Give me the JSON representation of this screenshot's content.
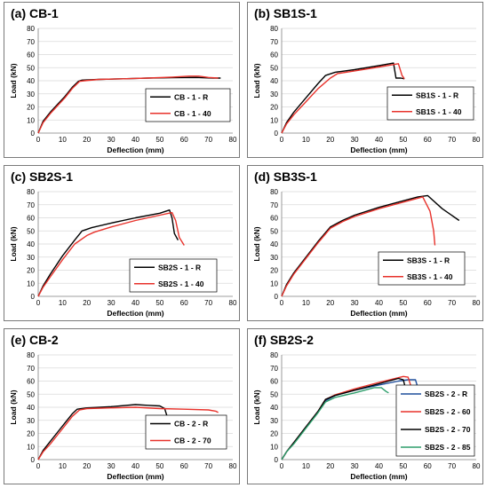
{
  "figure": {
    "panels": [
      "(a) CB-1",
      "(b) SB1S-1",
      "(c) SB2S-1",
      "(d) SB3S-1",
      "(e) CB-2",
      "(f) SB2S-2"
    ]
  },
  "colors": {
    "black": "#000000",
    "red": "#e8322b",
    "blue": "#1f4e9c",
    "green": "#2e9e6b"
  },
  "chart_data": [
    {
      "type": "line",
      "title": "(a) CB-1",
      "xlabel": "Deflection (mm)",
      "ylabel": "Load (kN)",
      "xlim": [
        0,
        80
      ],
      "ylim": [
        0,
        80
      ],
      "xticks": [
        0,
        10,
        20,
        30,
        40,
        50,
        60,
        70,
        80
      ],
      "yticks": [
        0,
        10,
        20,
        30,
        40,
        50,
        60,
        70,
        80
      ],
      "grid": "horizontal",
      "legend": "center-right",
      "series": [
        {
          "name": "CB - 1 - R",
          "color": "#000000",
          "x": [
            0,
            2,
            5,
            8,
            11,
            14,
            16.5,
            18,
            25,
            35,
            45,
            55,
            65,
            72,
            75
          ],
          "y": [
            0,
            9,
            16,
            22,
            28,
            35,
            39.5,
            40.5,
            41,
            41.5,
            42,
            42.3,
            42.5,
            42,
            42
          ]
        },
        {
          "name": "CB - 1 - 40",
          "color": "#e8322b",
          "x": [
            0,
            2,
            5,
            8,
            11,
            14,
            17,
            19,
            25,
            35,
            45,
            55,
            62,
            66,
            70,
            74
          ],
          "y": [
            0,
            8,
            15,
            21,
            27,
            34,
            39.5,
            40,
            41,
            41.5,
            42,
            42.8,
            43.5,
            43.5,
            42.5,
            42
          ]
        }
      ]
    },
    {
      "type": "line",
      "title": "(b) SB1S-1",
      "xlabel": "Deflection (mm)",
      "ylabel": "Load (kN)",
      "xlim": [
        0,
        80
      ],
      "ylim": [
        0,
        80
      ],
      "xticks": [
        0,
        10,
        20,
        30,
        40,
        50,
        60,
        70,
        80
      ],
      "yticks": [
        0,
        10,
        20,
        30,
        40,
        50,
        60,
        70,
        80
      ],
      "grid": "horizontal",
      "legend": "center-right",
      "series": [
        {
          "name": "SB1S - 1 - R",
          "color": "#000000",
          "x": [
            0,
            2,
            5,
            10,
            15,
            18,
            22,
            30,
            40,
            46,
            47,
            49,
            50.5
          ],
          "y": [
            0,
            8,
            16,
            27,
            38,
            44,
            46.5,
            48.5,
            51.5,
            53.5,
            42,
            42,
            41.5
          ]
        },
        {
          "name": "SB1S - 1 - 40",
          "color": "#e8322b",
          "x": [
            0,
            2,
            5,
            10,
            15,
            20,
            23,
            30,
            40,
            48,
            49.5,
            50.5
          ],
          "y": [
            0,
            7,
            14,
            24,
            34,
            42,
            45.5,
            47.5,
            50.5,
            53,
            44,
            41.5
          ]
        }
      ]
    },
    {
      "type": "line",
      "title": "(c) SB2S-1",
      "xlabel": "Deflection (mm)",
      "ylabel": "Load (kN)",
      "xlim": [
        0,
        80
      ],
      "ylim": [
        0,
        80
      ],
      "xticks": [
        0,
        10,
        20,
        30,
        40,
        50,
        60,
        70,
        80
      ],
      "yticks": [
        0,
        10,
        20,
        30,
        40,
        50,
        60,
        70,
        80
      ],
      "grid": "horizontal",
      "legend": "center-right",
      "series": [
        {
          "name": "SB2S - 1 - R",
          "color": "#000000",
          "x": [
            0,
            2,
            5,
            10,
            15,
            18,
            22,
            30,
            40,
            50,
            54,
            55,
            56,
            57.5
          ],
          "y": [
            0,
            8,
            17,
            31,
            43,
            50,
            52.5,
            56,
            60,
            63.5,
            66,
            60,
            48,
            43
          ]
        },
        {
          "name": "SB2S - 1 - 40",
          "color": "#e8322b",
          "x": [
            0,
            2,
            5,
            10,
            15,
            20,
            23,
            30,
            40,
            50,
            55,
            56.5,
            58,
            60
          ],
          "y": [
            0,
            7,
            15,
            28,
            40,
            46.5,
            49,
            53,
            58,
            62,
            64,
            58,
            45,
            39
          ]
        }
      ]
    },
    {
      "type": "line",
      "title": "(d) SB3S-1",
      "xlabel": "Deflection (mm)",
      "ylabel": "Load (kN)",
      "xlim": [
        0,
        80
      ],
      "ylim": [
        0,
        80
      ],
      "xticks": [
        0,
        10,
        20,
        30,
        40,
        50,
        60,
        70,
        80
      ],
      "yticks": [
        0,
        10,
        20,
        30,
        40,
        50,
        60,
        70,
        80
      ],
      "grid": "horizontal",
      "legend": "bottom-right",
      "series": [
        {
          "name": "SB3S - 1 - R",
          "color": "#000000",
          "x": [
            0,
            2,
            5,
            10,
            15,
            20,
            25,
            30,
            40,
            50,
            56,
            60,
            66,
            73
          ],
          "y": [
            0,
            9,
            18,
            30,
            42,
            53,
            58,
            62,
            68,
            73,
            76,
            77,
            67,
            58
          ]
        },
        {
          "name": "SB3S - 1 - 40",
          "color": "#e8322b",
          "x": [
            0,
            2,
            5,
            10,
            15,
            20,
            25,
            30,
            40,
            50,
            58,
            61,
            62.5,
            63
          ],
          "y": [
            0,
            8,
            17,
            29,
            41,
            52,
            57,
            61,
            67,
            72,
            76,
            65,
            50,
            39
          ]
        }
      ]
    },
    {
      "type": "line",
      "title": "(e) CB-2",
      "xlabel": "Deflection (mm)",
      "ylabel": "Load (kN)",
      "xlim": [
        0,
        80
      ],
      "ylim": [
        0,
        80
      ],
      "xticks": [
        0,
        10,
        20,
        30,
        40,
        50,
        60,
        70,
        80
      ],
      "yticks": [
        0,
        10,
        20,
        30,
        40,
        50,
        60,
        70,
        80
      ],
      "grid": "horizontal",
      "legend": "bottom-right",
      "series": [
        {
          "name": "CB - 2 - R",
          "color": "#000000",
          "x": [
            0,
            2,
            5,
            8,
            11,
            14,
            16,
            20,
            30,
            40,
            45,
            50,
            52,
            53,
            54
          ],
          "y": [
            0,
            7,
            14,
            21,
            28,
            35,
            38.5,
            39.5,
            40.5,
            42,
            41.5,
            41,
            39,
            33,
            29
          ]
        },
        {
          "name": "CB - 2 - 70",
          "color": "#e8322b",
          "x": [
            0,
            2,
            5,
            8,
            11,
            14,
            17,
            20,
            30,
            40,
            50,
            60,
            70,
            73,
            74
          ],
          "y": [
            0,
            6,
            12,
            19,
            26,
            33,
            38,
            39,
            39.5,
            40,
            39,
            38.5,
            38,
            37,
            36
          ]
        }
      ]
    },
    {
      "type": "line",
      "title": "(f) SB2S-2",
      "xlabel": "Deflection (mm)",
      "ylabel": "Load (kN)",
      "xlim": [
        0,
        80
      ],
      "ylim": [
        0,
        80
      ],
      "xticks": [
        0,
        10,
        20,
        30,
        40,
        50,
        60,
        70,
        80
      ],
      "yticks": [
        0,
        10,
        20,
        30,
        40,
        50,
        60,
        70,
        80
      ],
      "grid": "horizontal",
      "legend": "bottom-right",
      "series": [
        {
          "name": "SB2S - 2 - R",
          "color": "#1f4e9c",
          "x": [
            0,
            2,
            5,
            10,
            15,
            18,
            22,
            30,
            40,
            48,
            52,
            55,
            56,
            57
          ],
          "y": [
            0,
            6,
            13,
            25,
            37,
            45,
            49,
            53,
            57,
            60,
            61,
            61,
            55,
            49
          ]
        },
        {
          "name": "SB2S - 2 - 60",
          "color": "#e8322b",
          "x": [
            0,
            2,
            5,
            10,
            15,
            18,
            22,
            30,
            40,
            50,
            52,
            53,
            54
          ],
          "y": [
            0,
            6,
            13,
            25,
            37,
            46,
            49.5,
            54,
            59,
            63.5,
            63,
            57,
            50
          ]
        },
        {
          "name": "SB2S - 2 - 70",
          "color": "#000000",
          "x": [
            0,
            2,
            5,
            10,
            15,
            18,
            22,
            30,
            40,
            48,
            50,
            51,
            52
          ],
          "y": [
            0,
            6,
            13,
            25,
            37,
            46,
            49,
            53,
            58,
            62,
            61,
            54,
            49
          ]
        },
        {
          "name": "SB2S - 2 - 85",
          "color": "#2e9e6b",
          "x": [
            0,
            2,
            5,
            10,
            15,
            18,
            22,
            30,
            38,
            41,
            43,
            44
          ],
          "y": [
            0,
            6,
            12,
            24,
            36,
            44,
            47.5,
            51,
            55,
            55,
            52,
            51
          ]
        }
      ]
    }
  ]
}
